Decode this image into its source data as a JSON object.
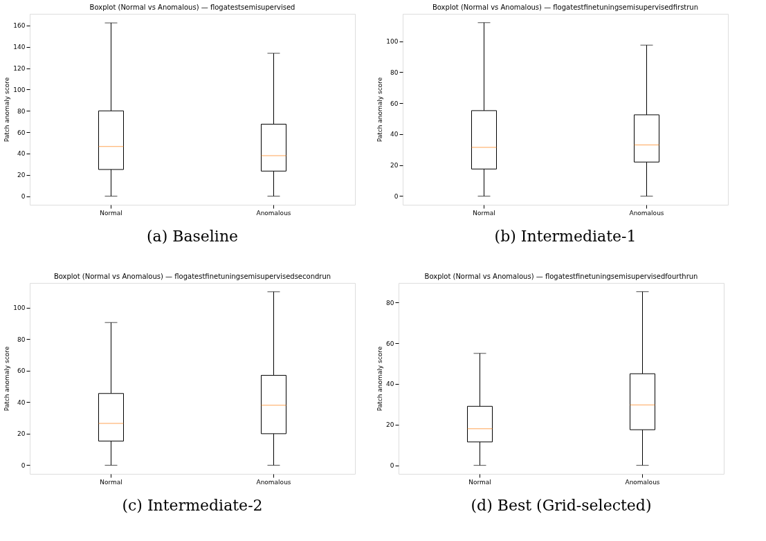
{
  "chart_data": [
    {
      "type": "box",
      "title": "Boxplot (Normal vs Anomalous) — flogatestsemisupervised",
      "ylabel": "Patch anomaly score",
      "categories": [
        "Normal",
        "Anomalous"
      ],
      "boxes": [
        {
          "low": 0,
          "q1": 25,
          "median": 46.5,
          "q3": 80,
          "high": 162.5
        },
        {
          "low": 0,
          "q1": 23.5,
          "median": 38,
          "q3": 67.5,
          "high": 134
        }
      ],
      "ylim": [
        -8.1,
        171
      ],
      "yticks": [
        0,
        20,
        40,
        60,
        80,
        100,
        120,
        140,
        160
      ],
      "annotations": [
        "(a) Baseline"
      ]
    },
    {
      "type": "box",
      "title": "Boxplot (Normal vs Anomalous) — flogatestfinetuningsemisupervisedfirstrun",
      "ylabel": "Patch anomaly score",
      "categories": [
        "Normal",
        "Anomalous"
      ],
      "boxes": [
        {
          "low": 0,
          "q1": 17.5,
          "median": 31.5,
          "q3": 55.2,
          "high": 112
        },
        {
          "low": 0,
          "q1": 22,
          "median": 33,
          "q3": 52.5,
          "high": 97.5
        }
      ],
      "ylim": [
        -5.6,
        117.7
      ],
      "yticks": [
        0,
        20,
        40,
        60,
        80,
        100
      ],
      "annotations": [
        "(b) Intermediate-1"
      ]
    },
    {
      "type": "box",
      "title": "Boxplot (Normal vs Anomalous) — flogatestfinetuningsemisupervisedsecondrun",
      "ylabel": "Patch anomaly score",
      "categories": [
        "Normal",
        "Anomalous"
      ],
      "boxes": [
        {
          "low": 0,
          "q1": 15.3,
          "median": 26.5,
          "q3": 45.5,
          "high": 90.5
        },
        {
          "low": 0,
          "q1": 20,
          "median": 38,
          "q3": 57,
          "high": 110
        }
      ],
      "ylim": [
        -5.5,
        115.6
      ],
      "yticks": [
        0,
        20,
        40,
        60,
        80,
        100
      ],
      "annotations": [
        "(c) Intermediate-2"
      ]
    },
    {
      "type": "box",
      "title": "Boxplot (Normal vs Anomalous) — flogatestfinetuningsemisupervisedfourthrun",
      "ylabel": "Patch anomaly score",
      "categories": [
        "Normal",
        "Anomalous"
      ],
      "boxes": [
        {
          "low": 0,
          "q1": 11.5,
          "median": 18,
          "q3": 29,
          "high": 55
        },
        {
          "low": 0,
          "q1": 17.5,
          "median": 29.7,
          "q3": 45,
          "high": 85.3
        }
      ],
      "ylim": [
        -4.2,
        89.6
      ],
      "yticks": [
        0,
        20,
        40,
        60,
        80
      ],
      "annotations": [
        "(d) Best (Grid-selected)"
      ]
    }
  ]
}
